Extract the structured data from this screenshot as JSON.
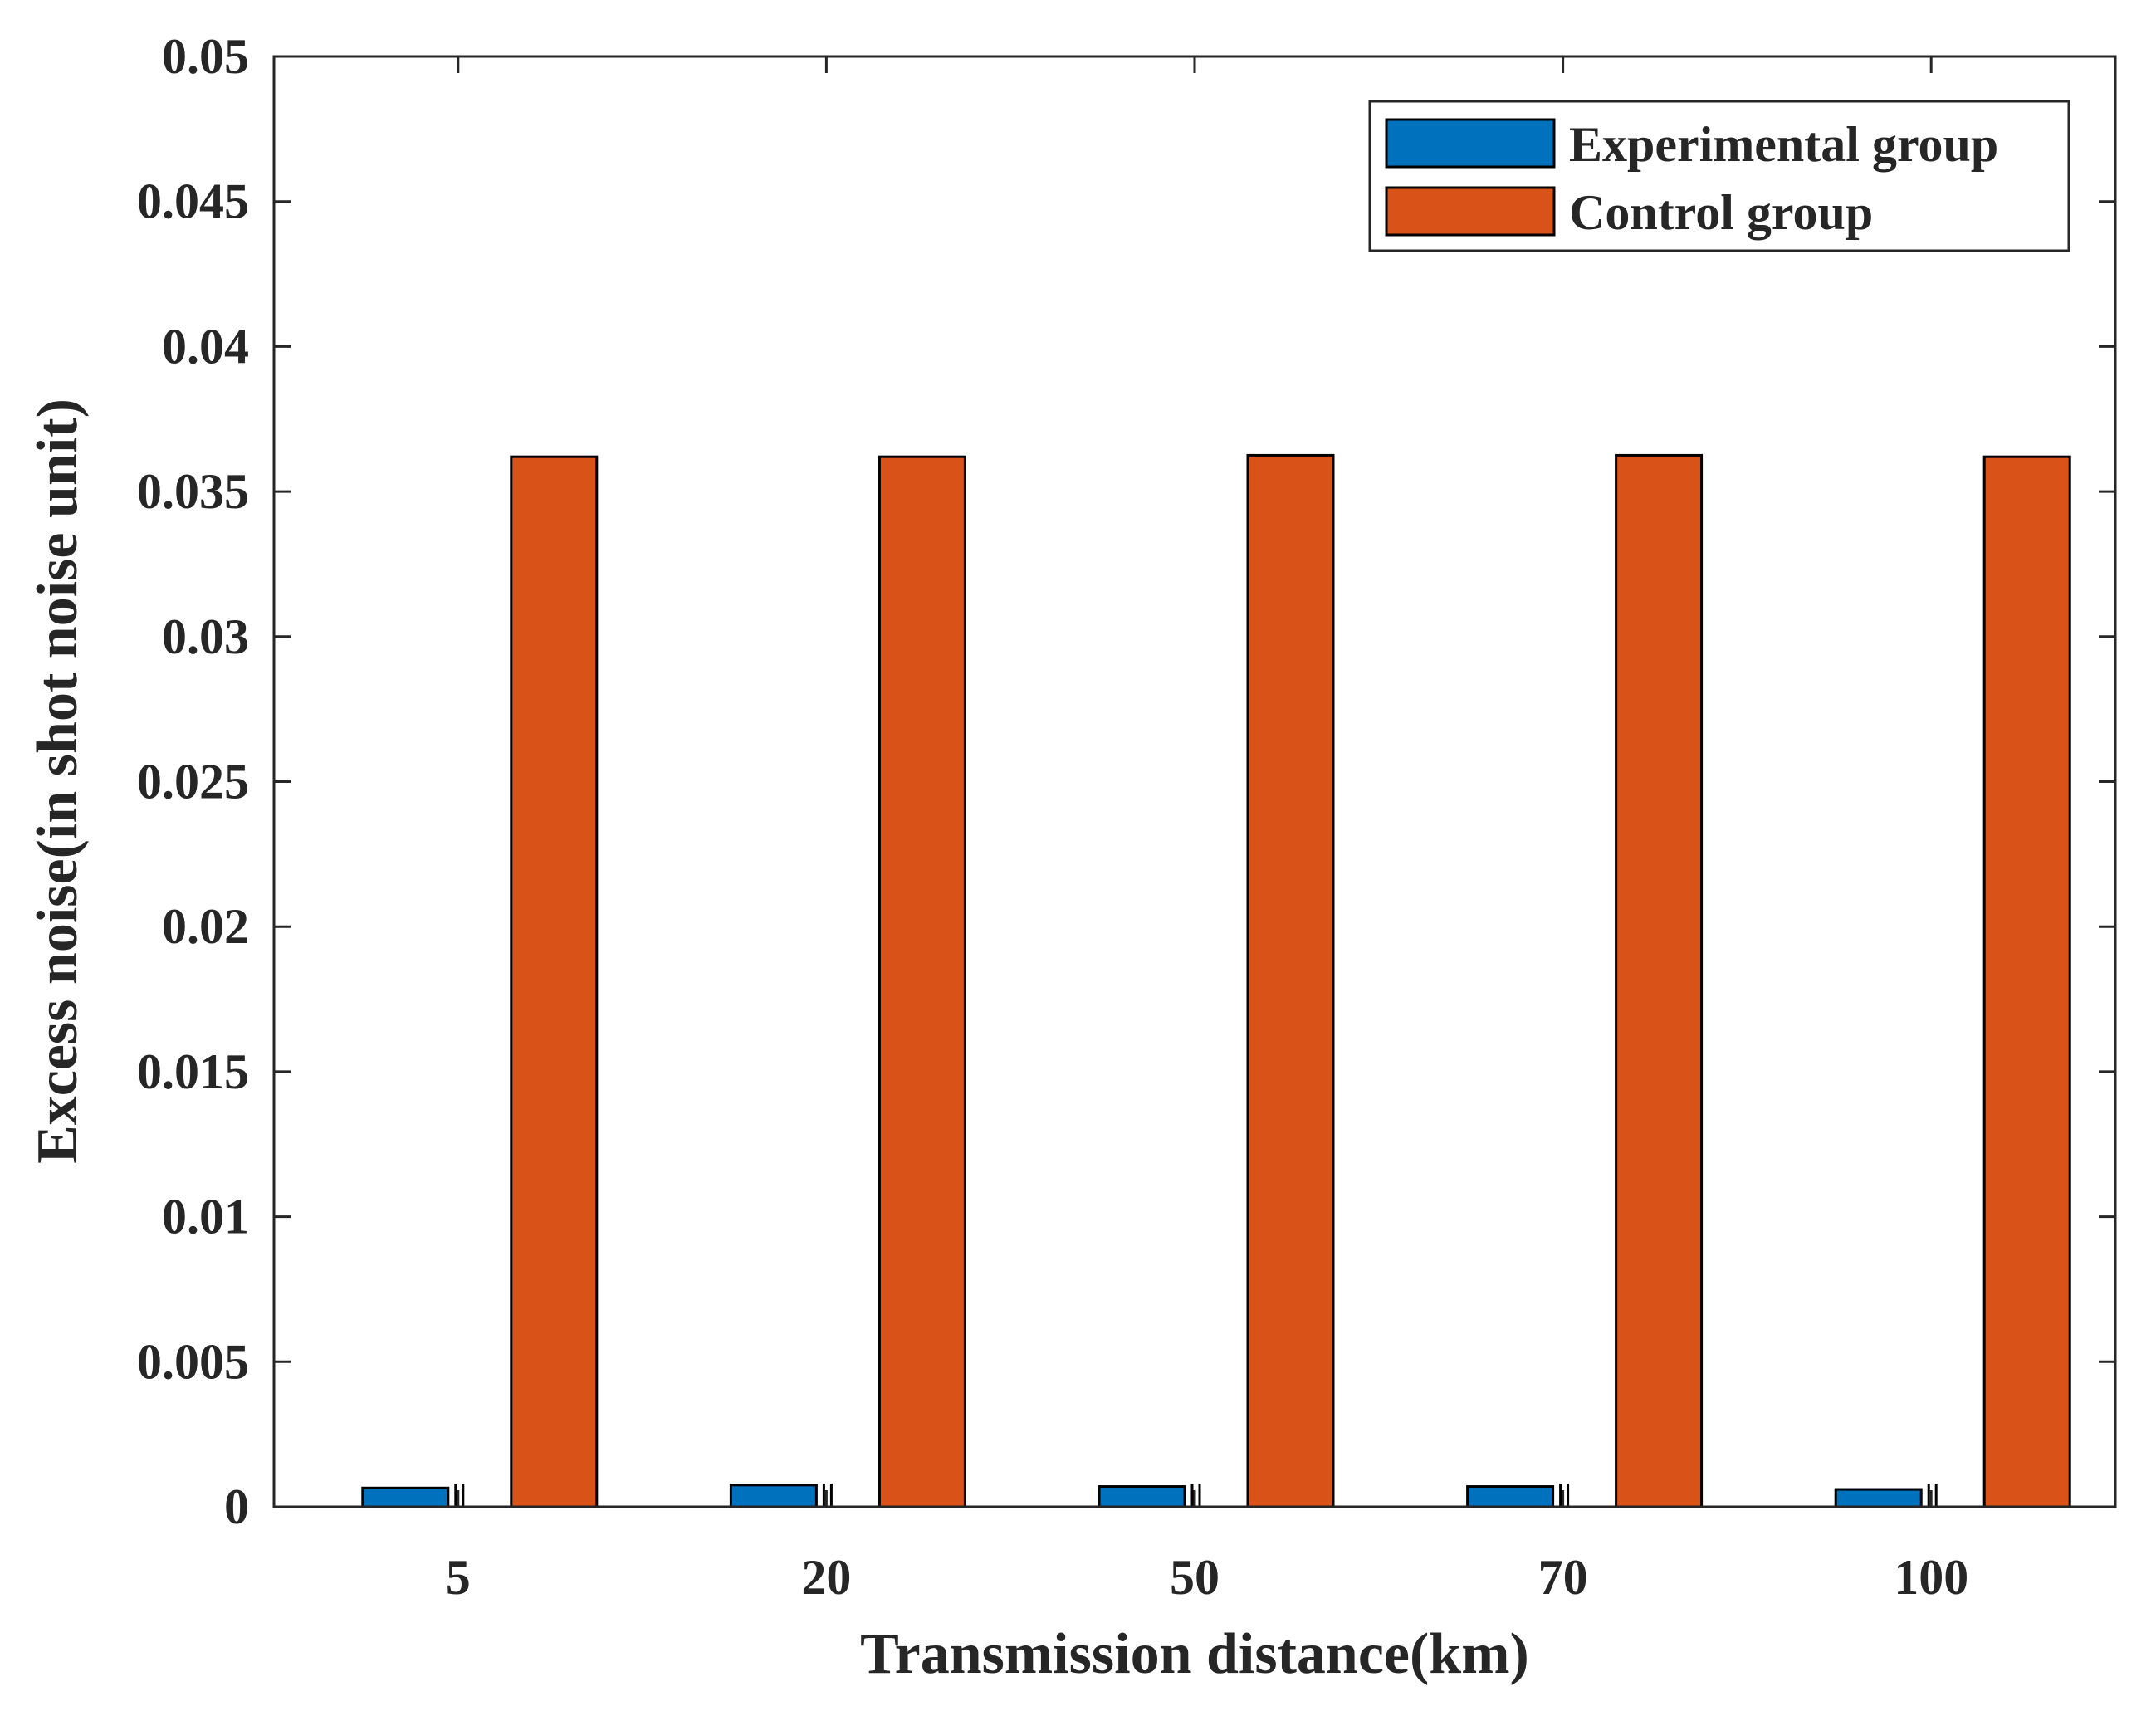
{
  "chart_data": {
    "type": "bar",
    "title": "",
    "xlabel": "Transmission distance(km)",
    "ylabel": "Excess noise(in shot noise unit)",
    "categories": [
      "5",
      "20",
      "50",
      "70",
      "100"
    ],
    "series": [
      {
        "name": "Experimental group",
        "color": "#0072BD",
        "values": [
          0.00065,
          0.00075,
          0.0007,
          0.0007,
          0.0006
        ]
      },
      {
        "name": "Control group",
        "color": "#D95319",
        "values": [
          0.0362,
          0.0362,
          0.03625,
          0.03625,
          0.0362
        ]
      }
    ],
    "ylim": [
      0,
      0.05
    ],
    "yticks": [
      0,
      0.005,
      0.01,
      0.015,
      0.02,
      0.025,
      0.03,
      0.035,
      0.04,
      0.045,
      0.05
    ],
    "ytick_labels": [
      "0",
      "0.005",
      "0.01",
      "0.015",
      "0.02",
      "0.025",
      "0.03",
      "0.035",
      "0.04",
      "0.045",
      "0.05"
    ],
    "grid": false,
    "legend_position": "top-right"
  }
}
